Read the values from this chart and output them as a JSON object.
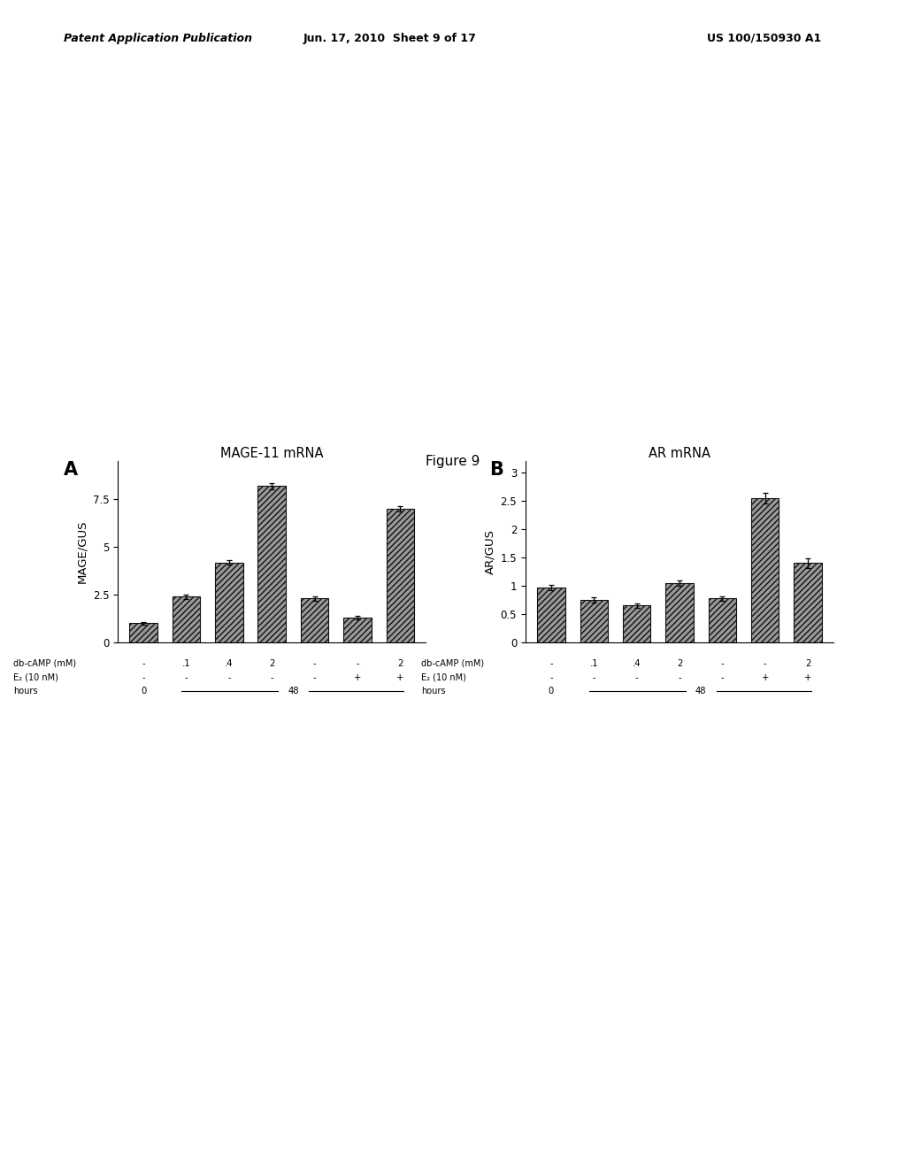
{
  "panel_a": {
    "title": "MAGE-11 mRNA",
    "ylabel": "MAGE/GUS",
    "values": [
      1.0,
      2.4,
      4.2,
      8.2,
      2.3,
      1.3,
      7.0
    ],
    "errors": [
      0.08,
      0.12,
      0.1,
      0.18,
      0.12,
      0.08,
      0.15
    ],
    "ylim": [
      0,
      9.5
    ],
    "yticks": [
      0,
      2.5,
      5.0,
      7.5
    ],
    "label": "A"
  },
  "panel_b": {
    "title": "AR mRNA",
    "ylabel": "AR/GUS",
    "values": [
      0.97,
      0.75,
      0.65,
      1.05,
      0.78,
      2.55,
      1.4
    ],
    "errors": [
      0.05,
      0.04,
      0.04,
      0.05,
      0.04,
      0.1,
      0.08
    ],
    "ylim": [
      0,
      3.2
    ],
    "yticks": [
      0,
      0.5,
      1.0,
      1.5,
      2.0,
      2.5,
      3.0
    ],
    "label": "B"
  },
  "bar_color": "#888888",
  "bar_edgecolor": "#111111",
  "bar_width": 0.65,
  "label_row1": [
    "-",
    ".1",
    ".4",
    "2",
    "-",
    "-",
    "2"
  ],
  "label_row2": [
    "-",
    "-",
    "-",
    "-",
    "-",
    "+",
    "+"
  ],
  "figure_title": "Figure 9",
  "header_left": "Patent Application Publication",
  "header_center": "Jun. 17, 2010  Sheet 9 of 17",
  "header_right": "US 100/150930 A1"
}
